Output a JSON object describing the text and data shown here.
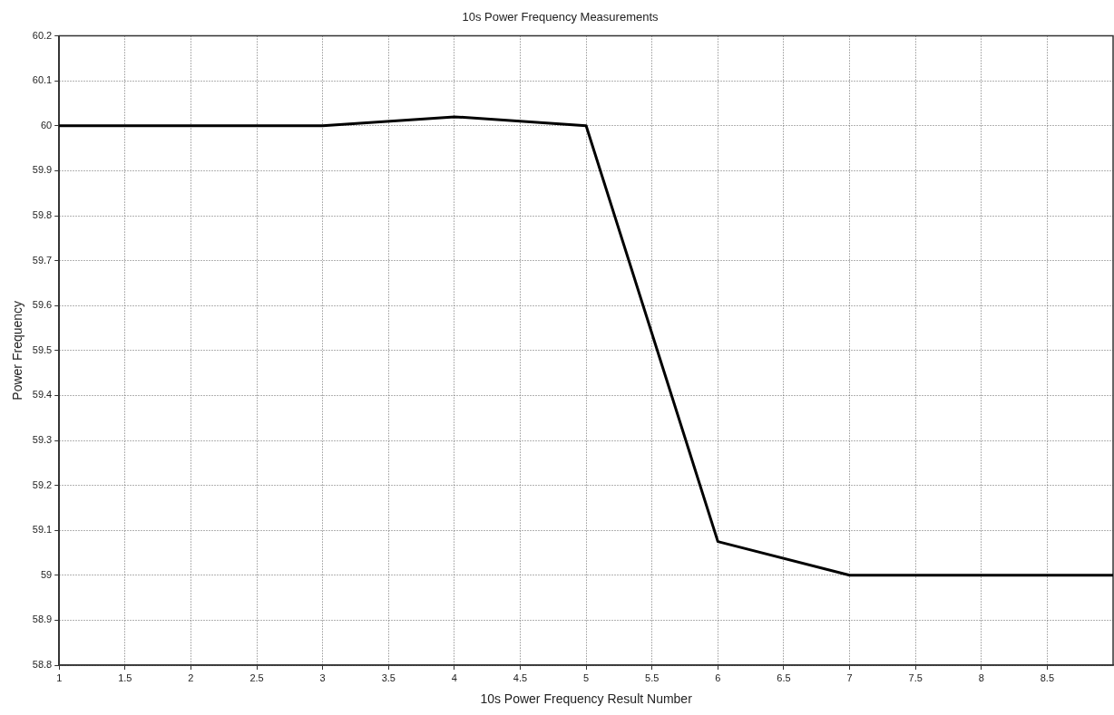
{
  "chart_data": {
    "type": "line",
    "title": "10s Power Frequency Measurements",
    "xlabel": "10s Power Frequency Result Number",
    "ylabel": "Power Frequency",
    "x": [
      1,
      2,
      3,
      4,
      5,
      6,
      7,
      8,
      9
    ],
    "series": [
      {
        "color": "#000000",
        "values": [
          60,
          60,
          60,
          60.02,
          60,
          59.075,
          59,
          59,
          59
        ]
      }
    ],
    "xlim": [
      1,
      9
    ],
    "xticks": [
      1,
      1.5,
      2,
      2.5,
      3,
      3.5,
      4,
      4.5,
      5,
      5.5,
      6,
      6.5,
      7,
      7.5,
      8,
      8.5
    ],
    "ylim": [
      58.8,
      60.2
    ],
    "yticks": [
      58.8,
      58.9,
      59,
      59.1,
      59.2,
      59.3,
      59.4,
      59.5,
      59.6,
      59.7,
      59.8,
      59.9,
      60,
      60.1,
      60.2
    ],
    "grid": true,
    "legend": false,
    "marker": "none",
    "line_style": "solid"
  }
}
